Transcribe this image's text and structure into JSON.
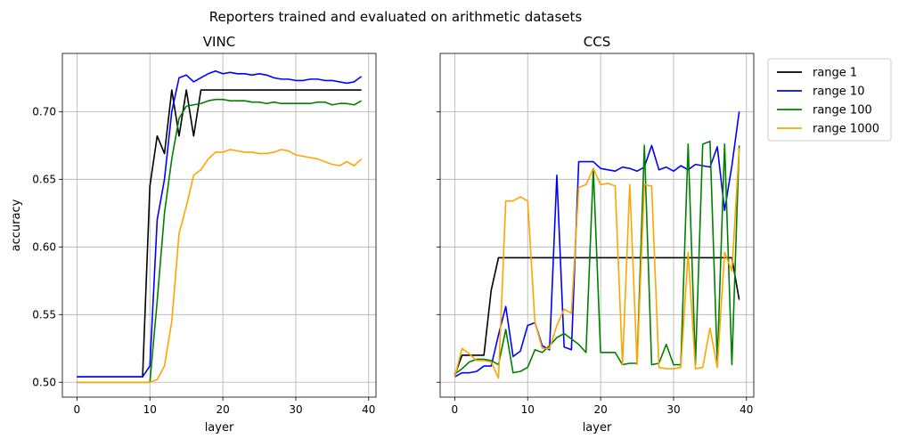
{
  "figure": {
    "suptitle": "Reporters trained and evaluated on arithmetic datasets"
  },
  "chart_data": [
    {
      "type": "line",
      "title": "VINC",
      "xlabel": "layer",
      "ylabel": "accuracy",
      "xlim": [
        -2,
        41
      ],
      "ylim": [
        0.489,
        0.743
      ],
      "xticks": [
        "0",
        "10",
        "20",
        "30",
        "40"
      ],
      "yticks": [
        "0.50",
        "0.55",
        "0.60",
        "0.65",
        "0.70"
      ],
      "grid": true,
      "series": [
        {
          "name": "range 1",
          "color": "#000000",
          "values": [
            0.504,
            0.504,
            0.504,
            0.504,
            0.504,
            0.504,
            0.504,
            0.504,
            0.504,
            0.504,
            0.645,
            0.682,
            0.669,
            0.716,
            0.682,
            0.716,
            0.682,
            0.716,
            0.716,
            0.716,
            0.716,
            0.716,
            0.716,
            0.716,
            0.716,
            0.716,
            0.716,
            0.716,
            0.716,
            0.716,
            0.716,
            0.716,
            0.716,
            0.716,
            0.716,
            0.716,
            0.716,
            0.716,
            0.716,
            0.716
          ]
        },
        {
          "name": "range 10",
          "color": "#0000ff",
          "values": [
            0.504,
            0.504,
            0.504,
            0.504,
            0.504,
            0.504,
            0.504,
            0.504,
            0.504,
            0.504,
            0.512,
            0.62,
            0.65,
            0.7,
            0.725,
            0.727,
            0.722,
            0.725,
            0.728,
            0.73,
            0.728,
            0.729,
            0.728,
            0.728,
            0.727,
            0.728,
            0.727,
            0.725,
            0.724,
            0.724,
            0.723,
            0.723,
            0.724,
            0.724,
            0.723,
            0.723,
            0.722,
            0.721,
            0.722,
            0.726
          ]
        },
        {
          "name": "range 100",
          "color": "#008000",
          "values": [
            0.5,
            0.5,
            0.5,
            0.5,
            0.5,
            0.5,
            0.5,
            0.5,
            0.5,
            0.5,
            0.5,
            0.56,
            0.625,
            0.665,
            0.695,
            0.704,
            0.705,
            0.706,
            0.708,
            0.709,
            0.709,
            0.708,
            0.708,
            0.708,
            0.707,
            0.707,
            0.706,
            0.707,
            0.706,
            0.706,
            0.706,
            0.706,
            0.706,
            0.707,
            0.707,
            0.705,
            0.706,
            0.706,
            0.705,
            0.708
          ]
        },
        {
          "name": "range 1000",
          "color": "#ffa500",
          "values": [
            0.5,
            0.5,
            0.5,
            0.5,
            0.5,
            0.5,
            0.5,
            0.5,
            0.5,
            0.5,
            0.5,
            0.502,
            0.512,
            0.545,
            0.61,
            0.63,
            0.653,
            0.657,
            0.665,
            0.67,
            0.67,
            0.672,
            0.671,
            0.67,
            0.67,
            0.669,
            0.669,
            0.67,
            0.672,
            0.671,
            0.668,
            0.667,
            0.666,
            0.665,
            0.663,
            0.661,
            0.66,
            0.663,
            0.66,
            0.665
          ]
        }
      ]
    },
    {
      "type": "line",
      "title": "CCS",
      "xlabel": "layer",
      "ylabel": "",
      "xlim": [
        -2,
        41
      ],
      "ylim": [
        0.489,
        0.743
      ],
      "xticks": [
        "0",
        "10",
        "20",
        "30",
        "40"
      ],
      "yticks": [],
      "grid": true,
      "legend": "outside-top-right",
      "series": [
        {
          "name": "range 1",
          "color": "#000000",
          "values": [
            0.505,
            0.52,
            0.52,
            0.52,
            0.52,
            0.568,
            0.592,
            0.592,
            0.592,
            0.592,
            0.592,
            0.592,
            0.592,
            0.592,
            0.592,
            0.592,
            0.592,
            0.592,
            0.592,
            0.592,
            0.592,
            0.592,
            0.592,
            0.592,
            0.592,
            0.592,
            0.592,
            0.592,
            0.592,
            0.592,
            0.592,
            0.592,
            0.592,
            0.592,
            0.592,
            0.592,
            0.592,
            0.592,
            0.592,
            0.561
          ]
        },
        {
          "name": "range 10",
          "color": "#0000ff",
          "values": [
            0.504,
            0.507,
            0.507,
            0.508,
            0.512,
            0.512,
            0.535,
            0.556,
            0.519,
            0.523,
            0.542,
            0.544,
            0.527,
            0.524,
            0.653,
            0.526,
            0.524,
            0.663,
            0.663,
            0.663,
            0.658,
            0.657,
            0.656,
            0.659,
            0.658,
            0.656,
            0.659,
            0.675,
            0.657,
            0.659,
            0.656,
            0.66,
            0.657,
            0.661,
            0.66,
            0.659,
            0.674,
            0.627,
            0.66,
            0.7
          ]
        },
        {
          "name": "range 100",
          "color": "#008000",
          "values": [
            0.506,
            0.51,
            0.515,
            0.517,
            0.517,
            0.516,
            0.513,
            0.539,
            0.507,
            0.508,
            0.511,
            0.524,
            0.522,
            0.527,
            0.533,
            0.536,
            0.532,
            0.528,
            0.522,
            0.658,
            0.522,
            0.522,
            0.522,
            0.513,
            0.514,
            0.514,
            0.675,
            0.513,
            0.514,
            0.528,
            0.513,
            0.513,
            0.676,
            0.513,
            0.676,
            0.678,
            0.514,
            0.676,
            0.513,
            0.675
          ]
        },
        {
          "name": "range 1000",
          "color": "#ffa500",
          "values": [
            0.504,
            0.525,
            0.521,
            0.516,
            0.516,
            0.515,
            0.503,
            0.634,
            0.634,
            0.637,
            0.634,
            0.544,
            0.525,
            0.525,
            0.542,
            0.554,
            0.551,
            0.644,
            0.646,
            0.658,
            0.646,
            0.647,
            0.645,
            0.513,
            0.646,
            0.513,
            0.646,
            0.645,
            0.511,
            0.51,
            0.51,
            0.511,
            0.596,
            0.51,
            0.511,
            0.54,
            0.511,
            0.596,
            0.582,
            0.673
          ]
        }
      ]
    }
  ]
}
